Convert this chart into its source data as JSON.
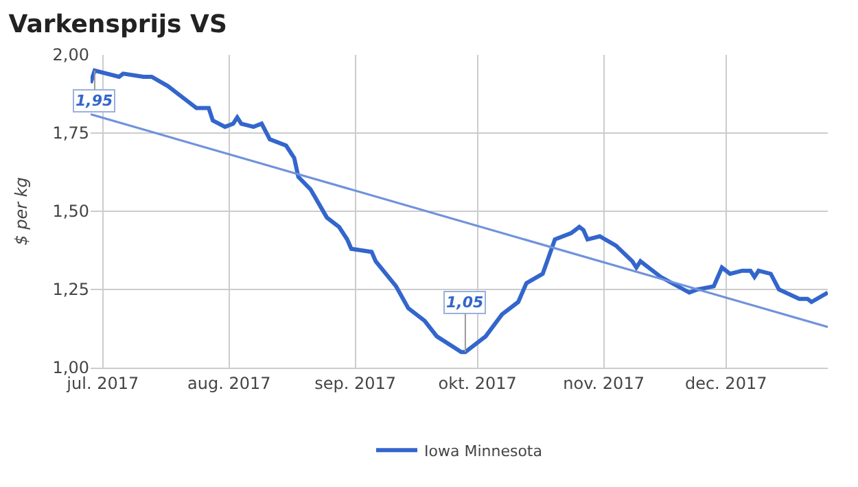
{
  "chart_data": {
    "type": "line",
    "title": "Varkensprijs VS",
    "ylabel": "$ per kg",
    "series": [
      {
        "name": "Iowa Minnesota",
        "color": "#3366cc",
        "x": [
          "2017-06-28",
          "2017-06-29",
          "2017-07-05",
          "2017-07-06",
          "2017-07-11",
          "2017-07-13",
          "2017-07-17",
          "2017-07-24",
          "2017-07-27",
          "2017-07-28",
          "2017-07-31",
          "2017-08-02",
          "2017-08-03",
          "2017-08-04",
          "2017-08-07",
          "2017-08-09",
          "2017-08-11",
          "2017-08-15",
          "2017-08-17",
          "2017-08-18",
          "2017-08-21",
          "2017-08-25",
          "2017-08-28",
          "2017-08-30",
          "2017-08-31",
          "2017-09-05",
          "2017-09-06",
          "2017-09-11",
          "2017-09-14",
          "2017-09-18",
          "2017-09-21",
          "2017-09-27",
          "2017-09-28",
          "2017-10-03",
          "2017-10-07",
          "2017-10-11",
          "2017-10-13",
          "2017-10-17",
          "2017-10-20",
          "2017-10-24",
          "2017-10-26",
          "2017-10-27",
          "2017-10-28",
          "2017-10-31",
          "2017-11-04",
          "2017-11-08",
          "2017-11-09",
          "2017-11-10",
          "2017-11-15",
          "2017-11-22",
          "2017-11-24",
          "2017-11-28",
          "2017-11-30",
          "2017-12-02",
          "2017-12-05",
          "2017-12-07",
          "2017-12-08",
          "2017-12-09",
          "2017-12-12",
          "2017-12-14",
          "2017-12-19",
          "2017-12-21",
          "2017-12-22",
          "2017-12-26"
        ],
        "values": [
          1.91,
          1.95,
          1.93,
          1.94,
          1.93,
          1.93,
          1.9,
          1.83,
          1.83,
          1.79,
          1.77,
          1.78,
          1.8,
          1.78,
          1.77,
          1.78,
          1.73,
          1.71,
          1.67,
          1.61,
          1.57,
          1.48,
          1.45,
          1.41,
          1.38,
          1.37,
          1.34,
          1.26,
          1.19,
          1.15,
          1.1,
          1.05,
          1.05,
          1.1,
          1.17,
          1.21,
          1.27,
          1.3,
          1.41,
          1.43,
          1.45,
          1.44,
          1.41,
          1.42,
          1.39,
          1.34,
          1.32,
          1.34,
          1.29,
          1.24,
          1.25,
          1.26,
          1.32,
          1.3,
          1.31,
          1.31,
          1.29,
          1.31,
          1.3,
          1.25,
          1.22,
          1.22,
          1.21,
          1.24
        ]
      },
      {
        "color": "#7092dd",
        "x": [
          "2017-06-28",
          "2017-12-26"
        ],
        "values": [
          1.81,
          1.13
        ]
      }
    ],
    "annotations": [
      {
        "text": "1,95",
        "x": "2017-06-29",
        "y": 1.95
      },
      {
        "text": "1,05",
        "x": "2017-09-28",
        "y": 1.05
      }
    ],
    "xlim": [
      "2017-06-28",
      "2017-12-26"
    ],
    "xticks": [
      {
        "value": "2017-07-01",
        "label": "jul. 2017"
      },
      {
        "value": "2017-08-01",
        "label": "aug. 2017"
      },
      {
        "value": "2017-09-01",
        "label": "sep. 2017"
      },
      {
        "value": "2017-10-01",
        "label": "okt. 2017"
      },
      {
        "value": "2017-11-01",
        "label": "nov. 2017"
      },
      {
        "value": "2017-12-01",
        "label": "dec. 2017"
      }
    ],
    "ylim": [
      1.0,
      2.0
    ],
    "yticks": [
      {
        "value": 1.0,
        "label": "1,00"
      },
      {
        "value": 1.25,
        "label": "1,25"
      },
      {
        "value": 1.5,
        "label": "1,50"
      },
      {
        "value": 1.75,
        "label": "1,75"
      },
      {
        "value": 2.0,
        "label": "2,00"
      }
    ],
    "grid": true,
    "legend": "bottom",
    "marker": "none",
    "line_style": "solid"
  }
}
